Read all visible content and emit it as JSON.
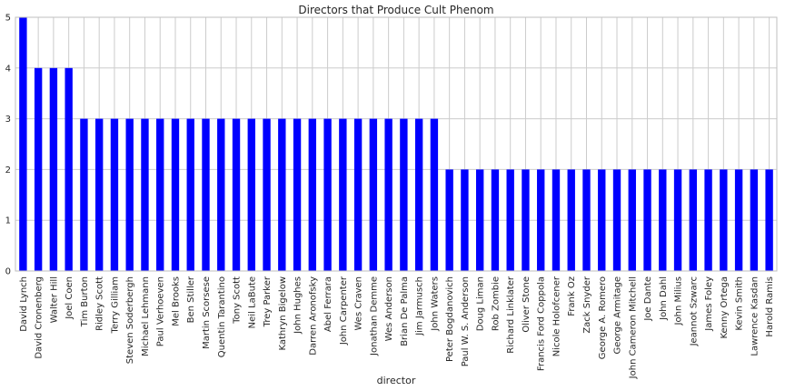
{
  "chart_data": {
    "type": "bar",
    "title": "Directors that Produce Cult Phenom",
    "xlabel": "director",
    "ylabel": "",
    "ylim": [
      0,
      5
    ],
    "yticks": [
      0,
      1,
      2,
      3,
      4,
      5
    ],
    "grid": true,
    "bar_color": "#0000ff",
    "categories": [
      "David Lynch",
      "David Cronenberg",
      "Walter Hill",
      "Joel Coen",
      "Tim Burton",
      "Ridley Scott",
      "Terry Gilliam",
      "Steven Soderbergh",
      "Michael Lehmann",
      "Paul Verhoeven",
      "Mel Brooks",
      "Ben Stiller",
      "Martin Scorsese",
      "Quentin Tarantino",
      "Tony Scott",
      "Neil LaBute",
      "Trey Parker",
      "Kathryn Bigelow",
      "John Hughes",
      "Darren Aronofsky",
      "Abel Ferrara",
      "John Carpenter",
      "Wes Craven",
      "Jonathan Demme",
      "Wes Anderson",
      "Brian De Palma",
      "Jim Jarmusch",
      "John Waters",
      "Peter Bogdanovich",
      "Paul W. S. Anderson",
      "Doug Liman",
      "Rob Zombie",
      "Richard Linklater",
      "Oliver Stone",
      "Francis Ford Coppola",
      "Nicole Holofcener",
      "Frank Oz",
      "Zack Snyder",
      "George A. Romero",
      "George Armitage",
      "John Cameron Mitchell",
      "Joe Dante",
      "John Dahl",
      "John Milius",
      "Jeannot Szwarc",
      "James Foley",
      "Kenny Ortega",
      "Kevin Smith",
      "Lawrence Kasdan",
      "Harold Ramis"
    ],
    "values": [
      5,
      4,
      4,
      4,
      3,
      3,
      3,
      3,
      3,
      3,
      3,
      3,
      3,
      3,
      3,
      3,
      3,
      3,
      3,
      3,
      3,
      3,
      3,
      3,
      3,
      3,
      3,
      3,
      2,
      2,
      2,
      2,
      2,
      2,
      2,
      2,
      2,
      2,
      2,
      2,
      2,
      2,
      2,
      2,
      2,
      2,
      2,
      2,
      2,
      2
    ]
  }
}
